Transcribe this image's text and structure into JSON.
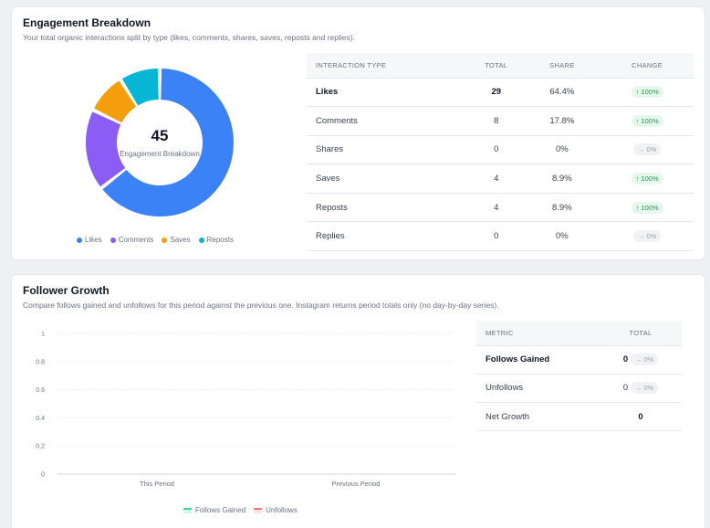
{
  "engagement": {
    "title": "Engagement Breakdown",
    "subtitle": "Your total organic interactions split by type (likes, comments, shares, saves, reposts and replies).",
    "donut": {
      "total": "45",
      "center_label": "Engagement Breakdown",
      "segments": [
        {
          "name": "Likes",
          "value": 29,
          "color": "#3b82f6"
        },
        {
          "name": "Comments",
          "value": 8,
          "color": "#8b5cf6"
        },
        {
          "name": "Saves",
          "value": 4,
          "color": "#f59e0b"
        },
        {
          "name": "Reposts",
          "value": 4,
          "color": "#06b6d4"
        }
      ]
    },
    "legend": [
      {
        "label": "Likes",
        "color": "#3b82f6"
      },
      {
        "label": "Comments",
        "color": "#8b5cf6"
      },
      {
        "label": "Saves",
        "color": "#f59e0b"
      },
      {
        "label": "Reposts",
        "color": "#06b6d4"
      }
    ],
    "table": {
      "headers": [
        "INTERACTION TYPE",
        "TOTAL",
        "SHARE",
        "CHANGE"
      ],
      "rows": [
        {
          "type": "Likes",
          "total": "29",
          "share": "64.4%",
          "change": "↑ 100%",
          "trend": "up"
        },
        {
          "type": "Comments",
          "total": "8",
          "share": "17.8%",
          "change": "↑ 100%",
          "trend": "up"
        },
        {
          "type": "Shares",
          "total": "0",
          "share": "0%",
          "change": "→ 0%",
          "trend": "flat"
        },
        {
          "type": "Saves",
          "total": "4",
          "share": "8.9%",
          "change": "↑ 100%",
          "trend": "up"
        },
        {
          "type": "Reposts",
          "total": "4",
          "share": "8.9%",
          "change": "↑ 100%",
          "trend": "up"
        },
        {
          "type": "Replies",
          "total": "0",
          "share": "0%",
          "change": "→ 0%",
          "trend": "flat"
        }
      ]
    }
  },
  "follower": {
    "title": "Follower Growth",
    "subtitle": "Compare follows gained and unfollows for this period against the previous one. Instagram returns period totals only (no day-by-day series).",
    "table": {
      "headers": [
        "METRIC",
        "TOTAL"
      ],
      "rows": [
        {
          "metric": "Follows Gained",
          "total": "0",
          "change": "→ 0%"
        },
        {
          "metric": "Unfollows",
          "total": "0",
          "change": "→ 0%"
        },
        {
          "metric": "Net Growth",
          "total": "0",
          "change": ""
        }
      ]
    },
    "legend": [
      {
        "label": "Follows Gained",
        "color": "#34d399",
        "bg": "#d1fae5"
      },
      {
        "label": "Unfollows",
        "color": "#f87171",
        "bg": "#fee2e2"
      }
    ]
  },
  "chart_data": [
    {
      "type": "pie",
      "categories": [
        "Likes",
        "Comments",
        "Saves",
        "Reposts"
      ],
      "values": [
        29,
        8,
        4,
        4
      ],
      "title": "",
      "legend": "bottom"
    },
    {
      "type": "bar",
      "categories": [
        "This Period",
        "Previous Period"
      ],
      "series": [
        {
          "name": "Follows Gained",
          "values": [
            0,
            0
          ]
        },
        {
          "name": "Unfollows",
          "values": [
            0,
            0
          ]
        }
      ],
      "ylim": [
        0,
        1
      ],
      "yticks": [
        "0",
        "0.2",
        "0.4",
        "0.6",
        "0.8",
        "1"
      ],
      "grid": true,
      "legend": "bottom"
    }
  ]
}
